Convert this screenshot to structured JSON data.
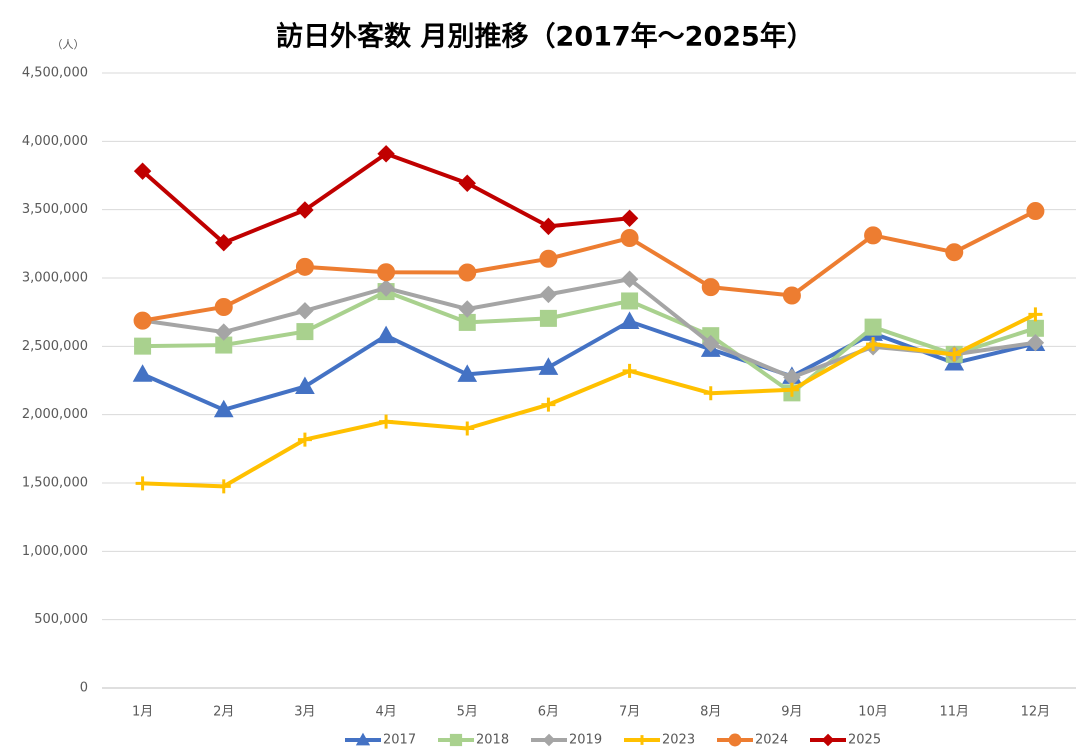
{
  "chart_data": {
    "type": "line",
    "title": "訪日外客数 月別推移（2017年～2025年）",
    "y_unit": "（人）",
    "categories": [
      "1月",
      "2月",
      "3月",
      "4月",
      "5月",
      "6月",
      "7月",
      "8月",
      "9月",
      "10月",
      "11月",
      "12月"
    ],
    "series": [
      {
        "name": "2017",
        "color": "#4472c4",
        "marker": "triangle",
        "values": [
          2295700,
          2035800,
          2205700,
          2578000,
          2294700,
          2346400,
          2682100,
          2478100,
          2280300,
          2595100,
          2377900,
          2521000
        ]
      },
      {
        "name": "2018",
        "color": "#a9d18e",
        "marker": "square",
        "values": [
          2501400,
          2509300,
          2607900,
          2900700,
          2675100,
          2704600,
          2832000,
          2578000,
          2159600,
          2640600,
          2441300,
          2632000
        ]
      },
      {
        "name": "2019",
        "color": "#a5a5a5",
        "marker": "diamond",
        "values": [
          2689300,
          2604300,
          2760100,
          2926700,
          2773100,
          2880000,
          2991200,
          2520100,
          2272900,
          2496600,
          2441300,
          2526400
        ]
      },
      {
        "name": "2023",
        "color": "#ffc000",
        "marker": "plus",
        "values": [
          1497300,
          1475500,
          1817500,
          1949100,
          1898900,
          2073300,
          2320600,
          2156900,
          2182000,
          2516500,
          2440500,
          2734000
        ]
      },
      {
        "name": "2024",
        "color": "#ed7d31",
        "marker": "circle",
        "values": [
          2688100,
          2788100,
          3081800,
          3042300,
          3040100,
          3140600,
          3292600,
          2933400,
          2872200,
          3312100,
          3188800,
          3489800
        ]
      },
      {
        "name": "2025",
        "color": "#c00000",
        "marker": "diamond",
        "values": [
          3781600,
          3258100,
          3497600,
          3908900,
          3693300,
          3377800,
          3437000,
          null,
          null,
          null,
          null,
          null
        ]
      }
    ],
    "ylim": [
      0,
      4500000
    ],
    "yticks": [
      0,
      {
        "value": 500000,
        "label": "500,000"
      },
      {
        "value": 1000000,
        "label": "1,000,000"
      },
      {
        "value": 1500000,
        "label": "1,500,000"
      },
      {
        "value": 2000000,
        "label": "2,000,000"
      },
      {
        "value": 2500000,
        "label": "2,500,000"
      },
      {
        "value": 3000000,
        "label": "3,000,000"
      },
      {
        "value": 3500000,
        "label": "3,500,000"
      },
      {
        "value": 4000000,
        "label": "4,000,000"
      },
      {
        "value": 4500000,
        "label": "4,500,000"
      }
    ],
    "grid": true,
    "legend": "bottom"
  }
}
